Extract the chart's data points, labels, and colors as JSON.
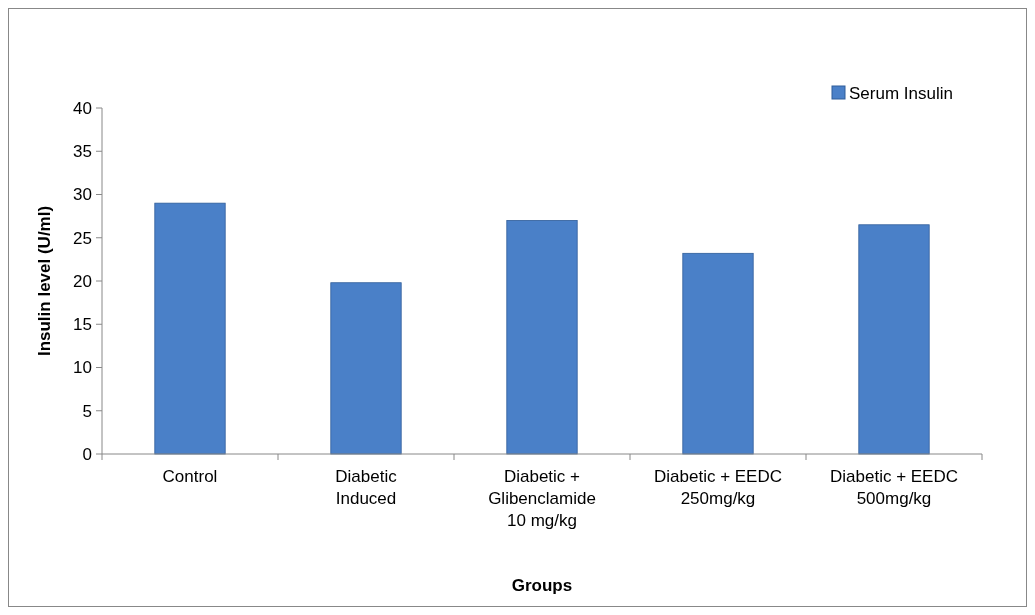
{
  "chart_data": {
    "type": "bar",
    "xlabel": "Groups",
    "ylabel": "Insulin level (U/ml)",
    "categories": [
      "Control",
      "Diabetic Induced",
      "Diabetic + Glibenclamide 10 mg/kg",
      "Diabetic + EEDC 250mg/kg",
      "Diabetic + EEDC 500mg/kg"
    ],
    "series": [
      {
        "name": "Serum Insulin",
        "color": "#4a80c8",
        "values": [
          29,
          19.8,
          27,
          23.2,
          26.5
        ]
      }
    ],
    "ylim": [
      0,
      40
    ],
    "yticks": [
      0,
      5,
      10,
      15,
      20,
      25,
      30,
      35,
      40
    ],
    "legend": "top right"
  }
}
